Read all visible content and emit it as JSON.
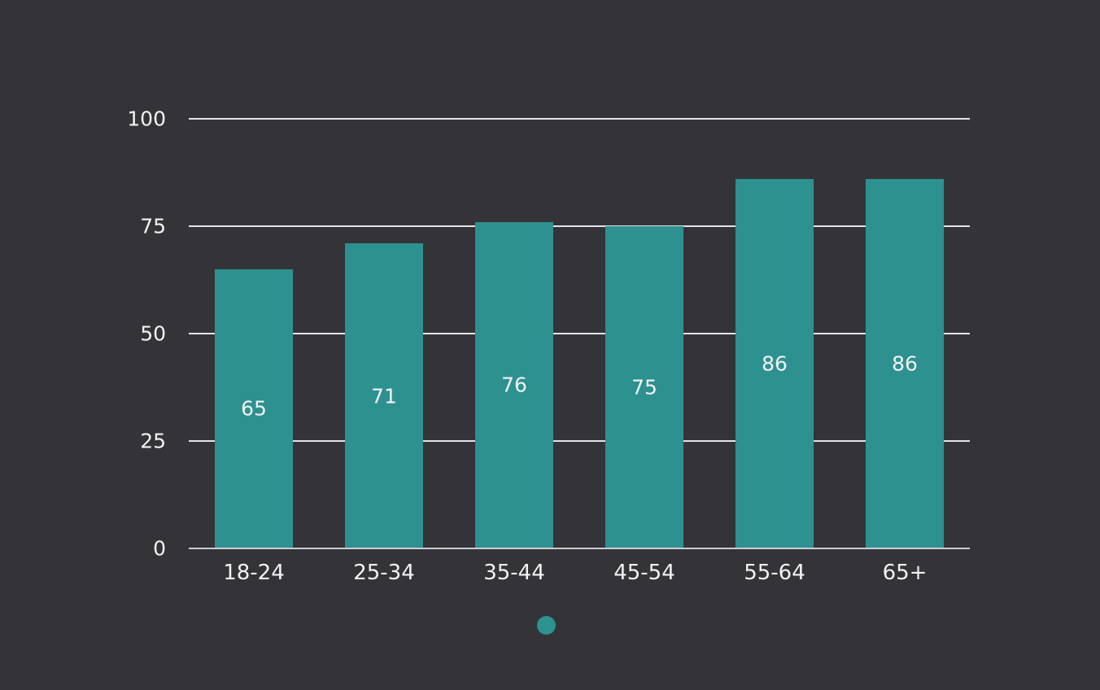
{
  "chart_data": {
    "type": "bar",
    "categories": [
      "18-24",
      "25-34",
      "35-44",
      "45-54",
      "55-64",
      "65+"
    ],
    "values": [
      65,
      71,
      76,
      75,
      86,
      86
    ],
    "value_labels": [
      "65",
      "71",
      "76",
      "75",
      "86",
      "86"
    ],
    "title": "",
    "xlabel": "",
    "ylabel": "",
    "ylim": [
      0,
      100
    ],
    "yticks": [
      0,
      25,
      50,
      75,
      100
    ],
    "ytick_labels": [
      "0",
      "25",
      "50",
      "75",
      "100"
    ],
    "grid": true,
    "value_labels_position": "inside-center",
    "legend_position": "bottom-center",
    "colors": {
      "background": "#343438",
      "bar": "#2d9190",
      "gridline": "#e4e4e8",
      "axis_line": "#cbcbd8",
      "text": "#f2f2f2"
    }
  },
  "legend": {
    "marker": "circle",
    "marker_color": "#2d9190",
    "label": ""
  }
}
